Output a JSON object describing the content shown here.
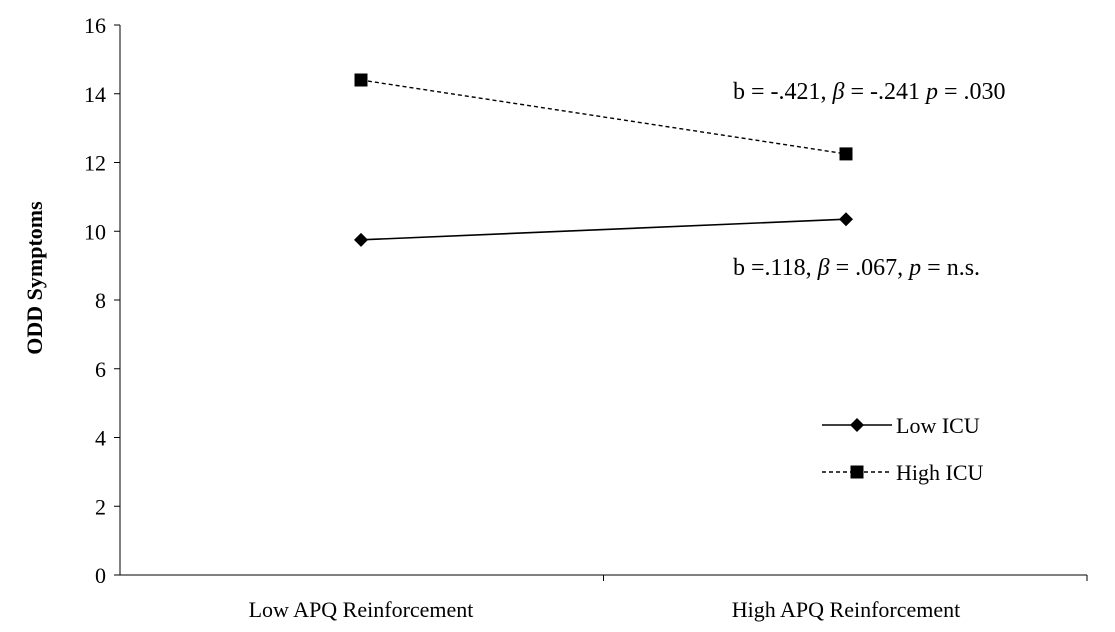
{
  "chart_data": {
    "type": "line",
    "title": "",
    "xlabel": "",
    "ylabel": "ODD Symptoms",
    "ylim": [
      0,
      16
    ],
    "yticks": [
      0,
      2,
      4,
      6,
      8,
      10,
      12,
      14,
      16
    ],
    "categories": [
      "Low APQ Reinforcement",
      "High APQ Reinforcement"
    ],
    "grid": false,
    "legend_position": "lower-right",
    "series": [
      {
        "name": "Low ICU",
        "values": [
          9.75,
          10.35
        ],
        "marker": "diamond",
        "line_style": "solid",
        "color": "#000000",
        "annotation": {
          "parts": [
            {
              "text": "b =.118, ",
              "italic": false
            },
            {
              "text": "β",
              "italic": true
            },
            {
              "text": " = .067, ",
              "italic": false
            },
            {
              "text": "p",
              "italic": true
            },
            {
              "text": " = n.s.",
              "italic": false
            }
          ]
        }
      },
      {
        "name": "High ICU",
        "values": [
          14.4,
          12.25
        ],
        "marker": "square",
        "line_style": "dashed",
        "color": "#000000",
        "annotation": {
          "parts": [
            {
              "text": "b = -.421, ",
              "italic": false
            },
            {
              "text": "β",
              "italic": true
            },
            {
              "text": " = -.241 ",
              "italic": false
            },
            {
              "text": "p",
              "italic": true
            },
            {
              "text": " = .030",
              "italic": false
            }
          ]
        }
      }
    ]
  }
}
